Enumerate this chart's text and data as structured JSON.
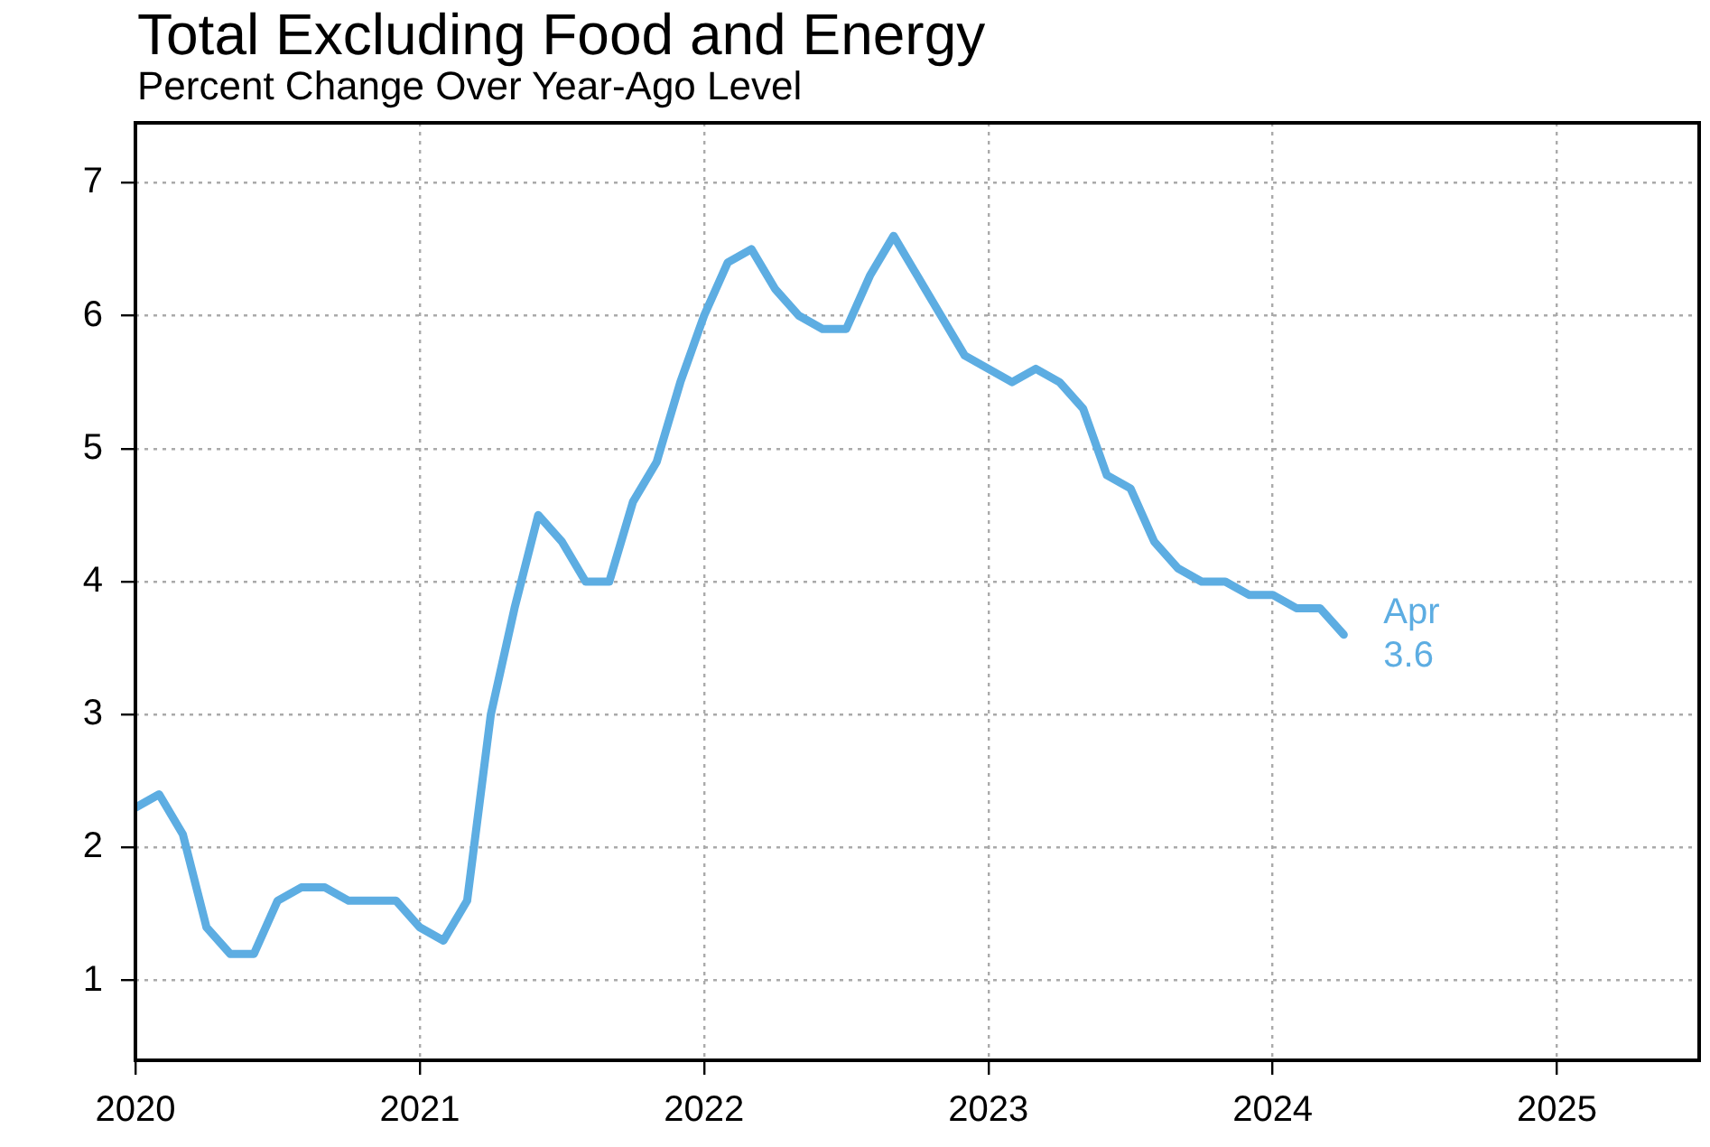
{
  "chart_data": {
    "type": "line",
    "title": "Total Excluding Food and Energy",
    "subtitle": "Percent Change Over Year-Ago Level",
    "x": [
      "2020-01",
      "2020-02",
      "2020-03",
      "2020-04",
      "2020-05",
      "2020-06",
      "2020-07",
      "2020-08",
      "2020-09",
      "2020-10",
      "2020-11",
      "2020-12",
      "2021-01",
      "2021-02",
      "2021-03",
      "2021-04",
      "2021-05",
      "2021-06",
      "2021-07",
      "2021-08",
      "2021-09",
      "2021-10",
      "2021-11",
      "2021-12",
      "2022-01",
      "2022-02",
      "2022-03",
      "2022-04",
      "2022-05",
      "2022-06",
      "2022-07",
      "2022-08",
      "2022-09",
      "2022-10",
      "2022-11",
      "2022-12",
      "2023-01",
      "2023-02",
      "2023-03",
      "2023-04",
      "2023-05",
      "2023-06",
      "2023-07",
      "2023-08",
      "2023-09",
      "2023-10",
      "2023-11",
      "2023-12",
      "2024-01",
      "2024-02",
      "2024-03",
      "2024-04"
    ],
    "series": [
      {
        "color": "#5dade2",
        "values": [
          2.3,
          2.4,
          2.1,
          1.4,
          1.2,
          1.2,
          1.6,
          1.7,
          1.7,
          1.6,
          1.6,
          1.6,
          1.4,
          1.3,
          1.6,
          3.0,
          3.8,
          4.5,
          4.3,
          4.0,
          4.0,
          4.6,
          4.9,
          5.5,
          6.0,
          6.4,
          6.5,
          6.2,
          6.0,
          5.9,
          5.9,
          6.3,
          6.6,
          6.3,
          6.0,
          5.7,
          5.6,
          5.5,
          5.6,
          5.5,
          5.3,
          4.8,
          4.7,
          4.3,
          4.1,
          4.0,
          4.0,
          3.9,
          3.9,
          3.8,
          3.8,
          3.6
        ]
      }
    ],
    "xlim": [
      "2020",
      "2025-07"
    ],
    "xticks": [
      "2020",
      "2021",
      "2022",
      "2023",
      "2024",
      "2025"
    ],
    "ylim": [
      0.4,
      7.45
    ],
    "yticks": [
      1,
      2,
      3,
      4,
      5,
      6,
      7
    ],
    "grid": true,
    "legend": false,
    "marker": "none",
    "line_style": "solid",
    "annotations": [
      {
        "text": "Apr 3.6",
        "x": "2024-04",
        "y": 3.6
      }
    ]
  }
}
